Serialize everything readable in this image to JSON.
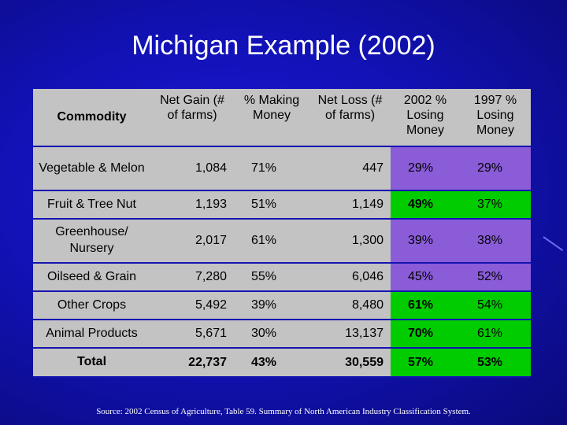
{
  "title": "Michigan Example (2002)",
  "table": {
    "headers": [
      "Commodity",
      "Net Gain (# of farms)",
      "% Making Money",
      "Net Loss (# of farms)",
      "2002 % Losing Money",
      "1997 % Losing Money"
    ],
    "rows": [
      {
        "commodity": "Vegetable & Melon",
        "net_gain": "1,084",
        "pct_making": "71%",
        "net_loss": "447",
        "pct_losing_2002": "29%",
        "pct_losing_1997": "29%"
      },
      {
        "commodity": "Fruit & Tree Nut",
        "net_gain": "1,193",
        "pct_making": "51%",
        "net_loss": "1,149",
        "pct_losing_2002": "49%",
        "pct_losing_1997": "37%"
      },
      {
        "commodity": "Greenhouse/ Nursery",
        "net_gain": "2,017",
        "pct_making": "61%",
        "net_loss": "1,300",
        "pct_losing_2002": "39%",
        "pct_losing_1997": "38%"
      },
      {
        "commodity": "Oilseed & Grain",
        "net_gain": "7,280",
        "pct_making": "55%",
        "net_loss": "6,046",
        "pct_losing_2002": "45%",
        "pct_losing_1997": "52%"
      },
      {
        "commodity": "Other Crops",
        "net_gain": "5,492",
        "pct_making": "39%",
        "net_loss": "8,480",
        "pct_losing_2002": "61%",
        "pct_losing_1997": "54%"
      },
      {
        "commodity": "Animal Products",
        "net_gain": "5,671",
        "pct_making": "30%",
        "net_loss": "13,137",
        "pct_losing_2002": "70%",
        "pct_losing_1997": "61%"
      }
    ],
    "total": {
      "commodity": "Total",
      "net_gain": "22,737",
      "pct_making": "43%",
      "net_loss": "30,559",
      "pct_losing_2002": "57%",
      "pct_losing_1997": "53%"
    }
  },
  "source": "Source: 2002 Census of Agriculture, Table 59. Summary of North American Industry Classification System.",
  "colors": {
    "background": "#1212b8",
    "cell_gray": "#c3c3c3",
    "cell_purple": "#8a5cd8",
    "cell_green": "#00cc00"
  }
}
